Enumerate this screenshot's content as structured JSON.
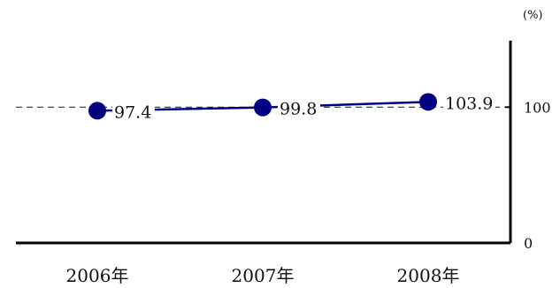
{
  "chart_data": {
    "type": "line",
    "categories": [
      "2006年",
      "2007年",
      "2008年"
    ],
    "series": [
      {
        "values": [
          97.4,
          99.8,
          103.9
        ],
        "color": "#000080"
      }
    ],
    "data_labels": [
      "97.4",
      "99.8",
      "103.9"
    ],
    "reference_line": {
      "value": 100,
      "style": "dashed"
    },
    "y_axis": {
      "position": "right",
      "unit": "(%)",
      "ticks": [
        {
          "value": 0,
          "label": "0"
        },
        {
          "value": 100,
          "label": "100"
        }
      ]
    },
    "ylim": [
      0,
      149
    ],
    "grid": false,
    "legend": "none",
    "colors": {
      "line": "#000080",
      "marker": "#000080",
      "axis": "#000000",
      "reference": "#333333"
    }
  }
}
